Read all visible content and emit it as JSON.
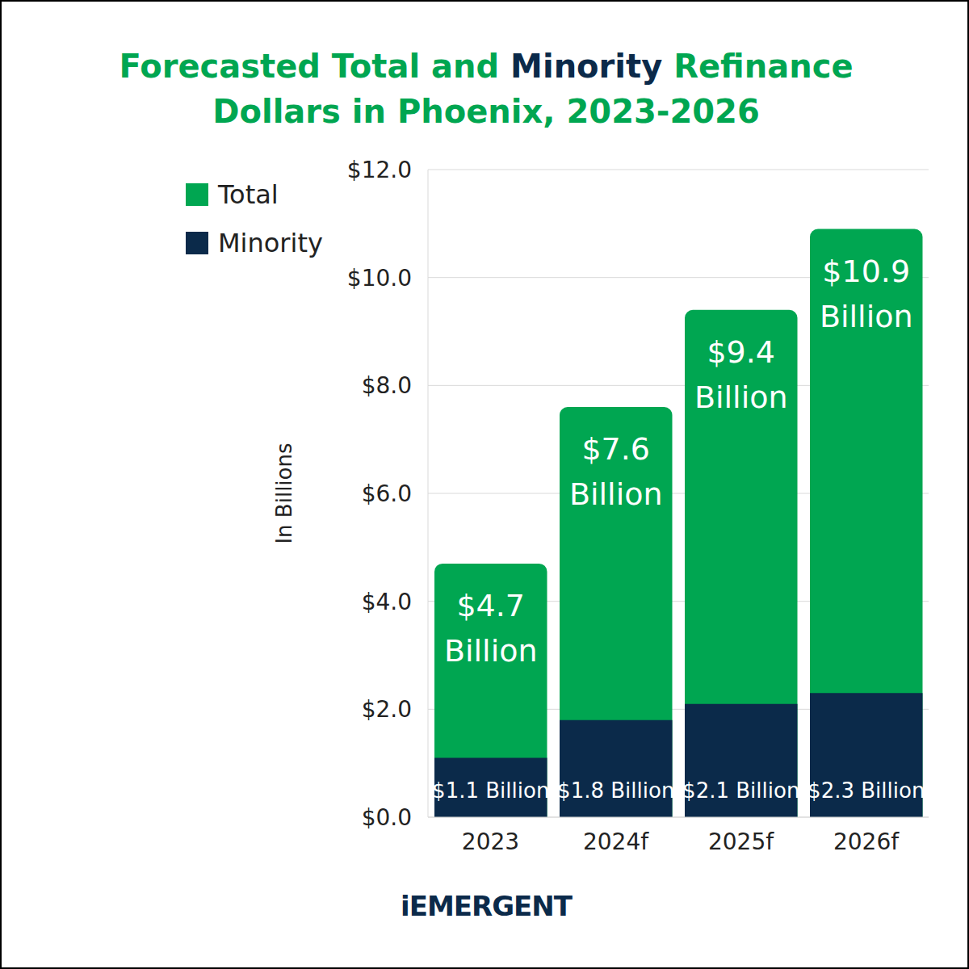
{
  "chart_data": {
    "type": "bar",
    "title": "Forecasted Total and Minority Refinance Dollars in Phoenix, 2023-2026",
    "y_label": "In Billions",
    "footer": "iEMERGENT",
    "categories": [
      "2023",
      "2024f",
      "2025f",
      "2026f"
    ],
    "series": [
      {
        "name": "Total",
        "color": "#00a651",
        "values": [
          4.7,
          7.6,
          9.4,
          10.9
        ],
        "value_labels": [
          "$4.7 Billion",
          "$7.6 Billion",
          "$9.4 Billion",
          "$10.9 Billion"
        ]
      },
      {
        "name": "Minority",
        "color": "#0b2a4a",
        "values": [
          1.1,
          1.8,
          2.1,
          2.3
        ],
        "value_labels": [
          "$1.1 Billion",
          "$1.8 Billion",
          "$2.1 Billion",
          "$2.3 Billion"
        ]
      }
    ],
    "ylim": [
      0,
      12
    ],
    "yticks": [
      {
        "value": 0,
        "label": "$0.0"
      },
      {
        "value": 2,
        "label": "$2.0"
      },
      {
        "value": 4,
        "label": "$4.0"
      },
      {
        "value": 6,
        "label": "$6.0"
      },
      {
        "value": 8,
        "label": "$8.0"
      },
      {
        "value": 10,
        "label": "$10.0"
      },
      {
        "value": 12,
        "label": "$12.0"
      }
    ],
    "grid": true,
    "legend": "upper left",
    "data_labels": true,
    "stacked": false
  }
}
